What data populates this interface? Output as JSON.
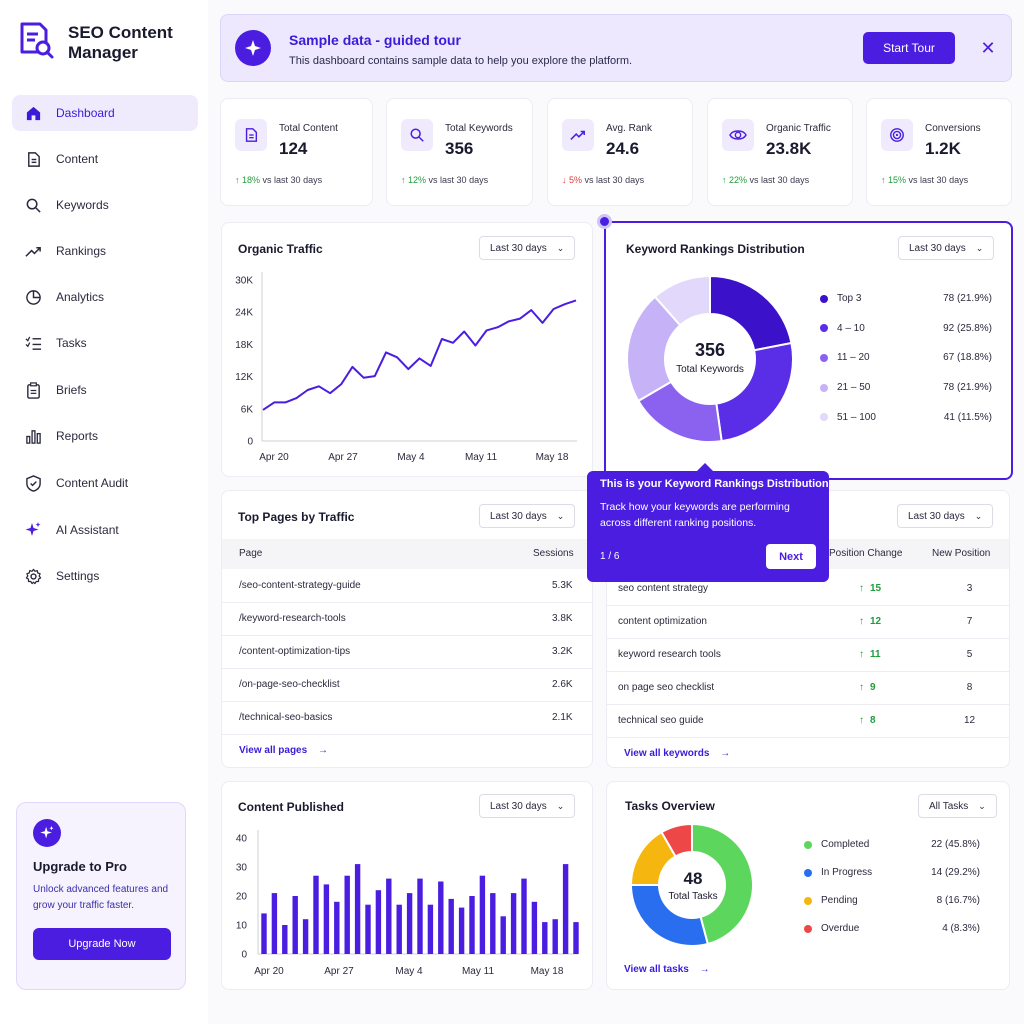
{
  "app": {
    "title": "SEO Content Manager"
  },
  "sidebar": {
    "items": [
      {
        "label": "Dashboard",
        "icon": "home-icon",
        "active": true
      },
      {
        "label": "Content",
        "icon": "document-icon"
      },
      {
        "label": "Keywords",
        "icon": "search-icon"
      },
      {
        "label": "Rankings",
        "icon": "trend-icon"
      },
      {
        "label": "Analytics",
        "icon": "pie-icon"
      },
      {
        "label": "Tasks",
        "icon": "checklist-icon"
      },
      {
        "label": "Briefs",
        "icon": "clipboard-icon"
      },
      {
        "label": "Reports",
        "icon": "bar-chart-icon"
      },
      {
        "label": "Content Audit",
        "icon": "shield-icon"
      },
      {
        "label": "AI Assistant",
        "icon": "sparkle-icon"
      },
      {
        "label": "Settings",
        "icon": "gear-icon"
      }
    ],
    "upgrade": {
      "title": "Upgrade to Pro",
      "description": "Unlock advanced features and grow your traffic faster.",
      "button": "Upgrade Now"
    }
  },
  "banner": {
    "title": "Sample data - guided tour",
    "subtitle": "This dashboard contains sample data to help you explore the platform.",
    "button": "Start Tour",
    "close": "✕"
  },
  "stats": [
    {
      "label": "Total Content",
      "value": "124",
      "change": "18%",
      "direction": "up",
      "suffix": "vs last 30 days",
      "icon": "document-icon"
    },
    {
      "label": "Total Keywords",
      "value": "356",
      "change": "12%",
      "direction": "up",
      "suffix": "vs last 30 days",
      "icon": "search-icon"
    },
    {
      "label": "Avg. Rank",
      "value": "24.6",
      "change": "5%",
      "direction": "down",
      "suffix": "vs last 30 days",
      "icon": "trend-icon"
    },
    {
      "label": "Organic Traffic",
      "value": "23.8K",
      "change": "22%",
      "direction": "up",
      "suffix": "vs last 30 days",
      "icon": "eye-icon"
    },
    {
      "label": "Conversions",
      "value": "1.2K",
      "change": "15%",
      "direction": "up",
      "suffix": "vs last 30 days",
      "icon": "target-icon"
    }
  ],
  "organic_traffic": {
    "title": "Organic Traffic",
    "range": "Last 30 days",
    "y_ticks": [
      "30K",
      "24K",
      "18K",
      "12K",
      "6K",
      "0"
    ],
    "x_ticks": [
      "Apr 20",
      "Apr 27",
      "May 4",
      "May 11",
      "May 18"
    ]
  },
  "rankings": {
    "title": "Keyword Rankings Distribution",
    "range": "Last 30 days",
    "center_value": "356",
    "center_label": "Total Keywords",
    "legend": [
      {
        "label": "Top 3",
        "value": "78 (21.9%)",
        "color": "#3b12c9"
      },
      {
        "label": "4 – 10",
        "value": "92 (25.8%)",
        "color": "#5a2de6"
      },
      {
        "label": "11 – 20",
        "value": "67 (18.8%)",
        "color": "#8a62ef"
      },
      {
        "label": "21 – 50",
        "value": "78 (21.9%)",
        "color": "#c5b2f7"
      },
      {
        "label": "51 – 100",
        "value": "41 (11.5%)",
        "color": "#e2d8fb"
      }
    ]
  },
  "tooltip": {
    "title": "This is your Keyword Rankings Distribution",
    "body": "Track how your keywords are performing across different ranking positions.",
    "step": "1 / 6",
    "next": "Next"
  },
  "top_pages": {
    "title": "Top Pages by Traffic",
    "range": "Last 30 days",
    "columns": [
      "Page",
      "Sessions"
    ],
    "rows": [
      {
        "page": "/seo-content-strategy-guide",
        "sessions": "5.3K"
      },
      {
        "page": "/keyword-research-tools",
        "sessions": "3.8K"
      },
      {
        "page": "/content-optimization-tips",
        "sessions": "3.2K"
      },
      {
        "page": "/on-page-seo-checklist",
        "sessions": "2.6K"
      },
      {
        "page": "/technical-seo-basics",
        "sessions": "2.1K"
      }
    ],
    "link": "View all pages"
  },
  "keywords_table": {
    "range": "Last 30 days",
    "columns": [
      "Position Change",
      "New Position"
    ],
    "rows": [
      {
        "keyword": "seo content strategy",
        "change": "15",
        "position": "3"
      },
      {
        "keyword": "content optimization",
        "change": "12",
        "position": "7"
      },
      {
        "keyword": "keyword research tools",
        "change": "11",
        "position": "5"
      },
      {
        "keyword": "on page seo checklist",
        "change": "9",
        "position": "8"
      },
      {
        "keyword": "technical seo guide",
        "change": "8",
        "position": "12"
      }
    ],
    "link": "View all keywords"
  },
  "content_published": {
    "title": "Content Published",
    "range": "Last 30 days",
    "y_ticks": [
      "40",
      "30",
      "20",
      "10",
      "0"
    ],
    "x_ticks": [
      "Apr 20",
      "Apr 27",
      "May 4",
      "May 11",
      "May 18"
    ]
  },
  "tasks": {
    "title": "Tasks Overview",
    "filter": "All Tasks",
    "center_value": "48",
    "center_label": "Total Tasks",
    "legend": [
      {
        "label": "Completed",
        "value": "22 (45.8%)",
        "color": "#5cd65c"
      },
      {
        "label": "In Progress",
        "value": "14 (29.2%)",
        "color": "#2a6ef0"
      },
      {
        "label": "Pending",
        "value": "8 (16.7%)",
        "color": "#f5b70f"
      },
      {
        "label": "Overdue",
        "value": "4 (8.3%)",
        "color": "#ee4747"
      }
    ],
    "link": "View all tasks"
  },
  "chart_data": [
    {
      "type": "line",
      "title": "Organic Traffic",
      "x_ticks": [
        "Apr 20",
        "Apr 27",
        "May 4",
        "May 11",
        "May 18"
      ],
      "ylim": [
        0,
        30000
      ],
      "values": [
        5800,
        7200,
        7200,
        8000,
        9500,
        10200,
        8900,
        10600,
        13800,
        11800,
        12100,
        16500,
        15600,
        13400,
        15400,
        14000,
        19000,
        18300,
        20400,
        17800,
        20600,
        21200,
        22300,
        22800,
        24400,
        22000,
        24600,
        25500,
        26200
      ],
      "color": "#4a1de0"
    },
    {
      "type": "pie",
      "title": "Keyword Rankings Distribution",
      "categories": [
        "Top 3",
        "4 – 10",
        "11 – 20",
        "21 – 50",
        "51 – 100"
      ],
      "values": [
        78,
        92,
        67,
        78,
        41
      ]
    },
    {
      "type": "bar",
      "title": "Content Published",
      "x_ticks": [
        "Apr 20",
        "Apr 27",
        "May 4",
        "May 11",
        "May 18"
      ],
      "ylim": [
        0,
        40
      ],
      "values": [
        14,
        21,
        10,
        20,
        12,
        27,
        24,
        18,
        27,
        31,
        17,
        22,
        26,
        17,
        21,
        26,
        17,
        25,
        19,
        16,
        20,
        27,
        21,
        13,
        21,
        26,
        18,
        11,
        12,
        31,
        11
      ],
      "color": "#4a1de0"
    },
    {
      "type": "pie",
      "title": "Tasks Overview",
      "categories": [
        "Completed",
        "In Progress",
        "Pending",
        "Overdue"
      ],
      "values": [
        22,
        14,
        8,
        4
      ]
    }
  ]
}
